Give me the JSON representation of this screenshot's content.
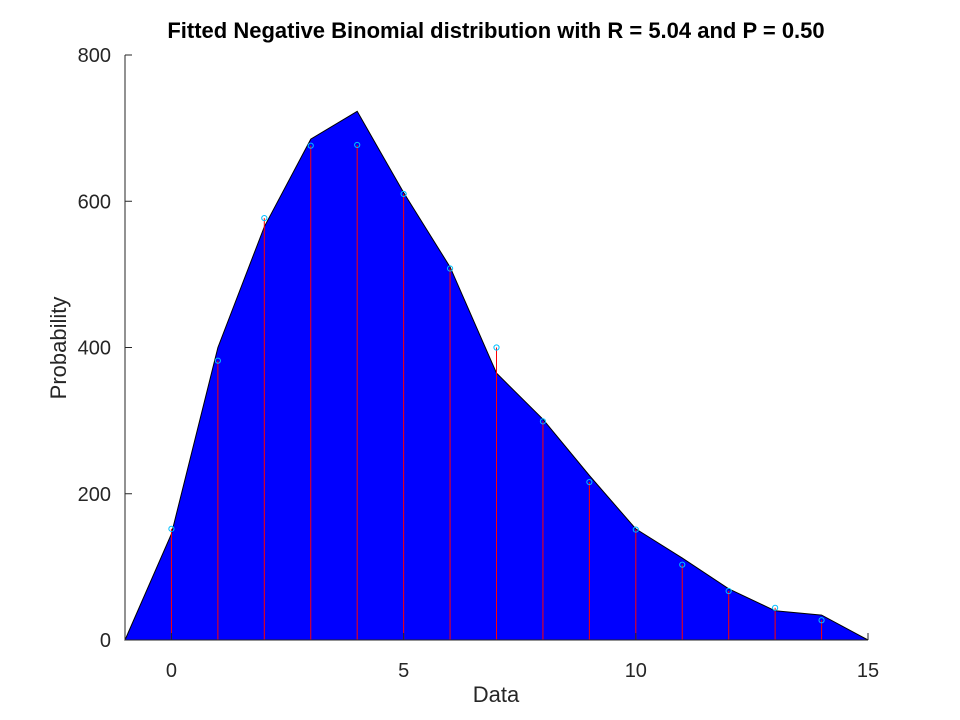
{
  "chart_data": {
    "type": "area",
    "title": "Fitted Negative Binomial distribution with R = 5.04 and P = 0.50",
    "xlabel": "Data",
    "ylabel": "Probability",
    "xlim": [
      -1,
      15
    ],
    "ylim": [
      0,
      800
    ],
    "xticks": [
      0,
      5,
      10,
      15
    ],
    "yticks": [
      0,
      200,
      400,
      600,
      800
    ],
    "grid": false,
    "fill_color": "#0000ff",
    "stem_color": "#ff0000",
    "marker_color": "#00bfff",
    "fitted": {
      "x": [
        -1,
        0,
        1,
        2,
        3,
        4,
        5,
        6,
        7,
        8,
        9,
        10,
        11,
        12,
        13,
        14,
        15
      ],
      "y": [
        0,
        145,
        400,
        565,
        685,
        723,
        612,
        510,
        365,
        302,
        225,
        152,
        112,
        70,
        40,
        34,
        0
      ]
    },
    "observed": {
      "x": [
        0,
        1,
        2,
        3,
        4,
        5,
        6,
        7,
        8,
        9,
        10,
        11,
        12,
        13,
        14
      ],
      "y": [
        152,
        382,
        577,
        676,
        677,
        610,
        508,
        400,
        299,
        216,
        151,
        103,
        67,
        44,
        27
      ]
    }
  }
}
